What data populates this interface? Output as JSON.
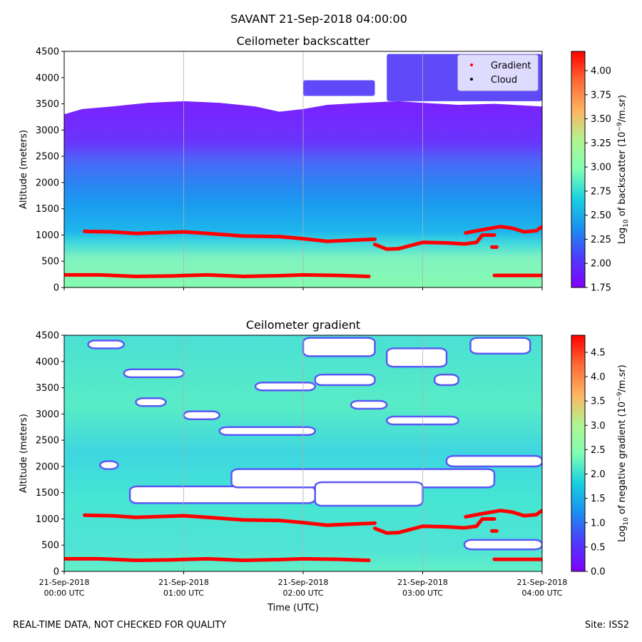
{
  "figure": {
    "suptitle": "SAVANT 21-Sep-2018 04:00:00",
    "footer_left": "REAL-TIME DATA, NOT CHECKED FOR QUALITY",
    "footer_right": "Site: ISS2"
  },
  "chart_data": [
    {
      "type": "heatmap",
      "title": "Ceilometer backscatter",
      "xlabel": "",
      "ylabel": "Altitude (meters)",
      "xlim_hours": [
        0,
        4
      ],
      "x_ticks": [
        {
          "t": 0,
          "line1": "21-Sep-2018",
          "line2": "00:00 UTC"
        },
        {
          "t": 1,
          "line1": "21-Sep-2018",
          "line2": "01:00 UTC"
        },
        {
          "t": 2,
          "line1": "21-Sep-2018",
          "line2": "02:00 UTC"
        },
        {
          "t": 3,
          "line1": "21-Sep-2018",
          "line2": "03:00 UTC"
        },
        {
          "t": 4,
          "line1": "21-Sep-2018",
          "line2": "04:00 UTC"
        }
      ],
      "show_x_tick_labels": false,
      "ylim": [
        0,
        4500
      ],
      "y_ticks": [
        0,
        500,
        1000,
        1500,
        2000,
        2500,
        3000,
        3500,
        4000,
        4500
      ],
      "grid_x": true,
      "colorbar": {
        "label_prefix": "Log",
        "label_sub": "10",
        "label_text": " of backscatter (10",
        "label_sup": "−9",
        "label_suffix": "/m.sr)",
        "range": [
          1.75,
          4.2
        ],
        "ticks": [
          "1.75",
          "2.00",
          "2.25",
          "2.50",
          "2.75",
          "3.00",
          "3.25",
          "3.50",
          "3.75",
          "4.00"
        ]
      },
      "legend": {
        "placement": "top-right",
        "entries": [
          {
            "label": "Gradient",
            "color": "#ff0000"
          },
          {
            "label": "Cloud",
            "color": "#000000"
          }
        ]
      },
      "top_of_signal_m": [
        [
          0,
          3300
        ],
        [
          0.15,
          3400
        ],
        [
          0.4,
          3450
        ],
        [
          0.7,
          3520
        ],
        [
          1.0,
          3550
        ],
        [
          1.3,
          3520
        ],
        [
          1.6,
          3450
        ],
        [
          1.8,
          3350
        ],
        [
          2.0,
          3400
        ],
        [
          2.2,
          3480
        ],
        [
          2.5,
          3520
        ],
        [
          2.8,
          3550
        ],
        [
          3.0,
          3520
        ],
        [
          3.3,
          3480
        ],
        [
          3.6,
          3500
        ],
        [
          4.0,
          3450
        ]
      ],
      "upper_clouds": [
        {
          "t_start": 2.0,
          "t_end": 2.6,
          "z_bottom": 3650,
          "z_top": 3950
        },
        {
          "t_start": 2.7,
          "t_end": 4.0,
          "z_bottom": 3550,
          "z_top": 4450
        }
      ],
      "gradient_upper": [
        {
          "segment": [
            [
              0.17,
              1070
            ],
            [
              0.4,
              1060
            ],
            [
              0.6,
              1030
            ],
            [
              0.8,
              1045
            ],
            [
              1.0,
              1060
            ],
            [
              1.2,
              1030
            ],
            [
              1.5,
              980
            ],
            [
              1.8,
              970
            ],
            [
              2.0,
              930
            ],
            [
              2.2,
              880
            ],
            [
              2.4,
              900
            ],
            [
              2.6,
              920
            ]
          ]
        },
        {
          "segment": [
            [
              2.6,
              820
            ],
            [
              2.7,
              730
            ],
            [
              2.8,
              740
            ],
            [
              3.0,
              860
            ],
            [
              3.2,
              850
            ],
            [
              3.35,
              830
            ],
            [
              3.45,
              860
            ],
            [
              3.5,
              1000
            ],
            [
              3.6,
              1000
            ]
          ]
        },
        {
          "segment": [
            [
              3.36,
              1040
            ],
            [
              3.5,
              1100
            ],
            [
              3.65,
              1160
            ],
            [
              3.75,
              1130
            ],
            [
              3.85,
              1060
            ],
            [
              3.95,
              1080
            ],
            [
              4.0,
              1160
            ]
          ]
        },
        {
          "segment": [
            [
              3.58,
              770
            ],
            [
              3.62,
              770
            ]
          ]
        }
      ],
      "gradient_lower": [
        {
          "segment": [
            [
              0,
              240
            ],
            [
              0.3,
              240
            ],
            [
              0.6,
              210
            ],
            [
              0.9,
              220
            ],
            [
              1.2,
              240
            ],
            [
              1.5,
              210
            ],
            [
              1.8,
              225
            ],
            [
              2.0,
              240
            ],
            [
              2.3,
              230
            ],
            [
              2.55,
              210
            ]
          ]
        },
        {
          "segment": [
            [
              3.6,
              230
            ],
            [
              4.0,
              230
            ]
          ]
        }
      ]
    },
    {
      "type": "heatmap",
      "title": "Ceilometer gradient",
      "xlabel": "Time (UTC)",
      "ylabel": "Altitude (meters)",
      "xlim_hours": [
        0,
        4
      ],
      "x_ticks": [
        {
          "t": 0,
          "line1": "21-Sep-2018",
          "line2": "00:00 UTC"
        },
        {
          "t": 1,
          "line1": "21-Sep-2018",
          "line2": "01:00 UTC"
        },
        {
          "t": 2,
          "line1": "21-Sep-2018",
          "line2": "02:00 UTC"
        },
        {
          "t": 3,
          "line1": "21-Sep-2018",
          "line2": "03:00 UTC"
        },
        {
          "t": 4,
          "line1": "21-Sep-2018",
          "line2": "04:00 UTC"
        }
      ],
      "show_x_tick_labels": true,
      "ylim": [
        0,
        4500
      ],
      "y_ticks": [
        0,
        500,
        1000,
        1500,
        2000,
        2500,
        3000,
        3500,
        4000,
        4500
      ],
      "grid_x": true,
      "colorbar": {
        "label_prefix": "Log",
        "label_sub": "10",
        "label_text": " of negative gradient (10",
        "label_sup": "−9",
        "label_suffix": "/m.sr)",
        "range": [
          0.0,
          4.85
        ],
        "ticks": [
          "0.0",
          "0.5",
          "1.0",
          "1.5",
          "2.0",
          "2.5",
          "3.0",
          "3.5",
          "4.0",
          "4.5"
        ]
      },
      "no_data_regions": [
        {
          "t_start": 0.55,
          "t_end": 2.1,
          "z_bottom": 1300,
          "z_top": 1620
        },
        {
          "t_start": 1.4,
          "t_end": 3.6,
          "z_bottom": 1600,
          "z_top": 1950
        },
        {
          "t_start": 2.1,
          "t_end": 3.0,
          "z_bottom": 1250,
          "z_top": 1700
        },
        {
          "t_start": 3.2,
          "t_end": 4.0,
          "z_bottom": 2000,
          "z_top": 2200
        },
        {
          "t_start": 0.3,
          "t_end": 0.45,
          "z_bottom": 1950,
          "z_top": 2100
        },
        {
          "t_start": 1.3,
          "t_end": 2.1,
          "z_bottom": 2600,
          "z_top": 2750
        },
        {
          "t_start": 0.6,
          "t_end": 0.85,
          "z_bottom": 3150,
          "z_top": 3300
        },
        {
          "t_start": 1.0,
          "t_end": 1.3,
          "z_bottom": 2900,
          "z_top": 3050
        },
        {
          "t_start": 2.4,
          "t_end": 2.7,
          "z_bottom": 3100,
          "z_top": 3250
        },
        {
          "t_start": 2.7,
          "t_end": 3.3,
          "z_bottom": 2800,
          "z_top": 2950
        },
        {
          "t_start": 2.1,
          "t_end": 2.6,
          "z_bottom": 3550,
          "z_top": 3750
        },
        {
          "t_start": 1.6,
          "t_end": 2.1,
          "z_bottom": 3450,
          "z_top": 3600
        },
        {
          "t_start": 2.0,
          "t_end": 2.6,
          "z_bottom": 4100,
          "z_top": 4450
        },
        {
          "t_start": 2.7,
          "t_end": 3.2,
          "z_bottom": 3900,
          "z_top": 4250
        },
        {
          "t_start": 3.4,
          "t_end": 3.9,
          "z_bottom": 4150,
          "z_top": 4450
        },
        {
          "t_start": 0.5,
          "t_end": 1.0,
          "z_bottom": 3700,
          "z_top": 3850
        },
        {
          "t_start": 0.2,
          "t_end": 0.5,
          "z_bottom": 4250,
          "z_top": 4400
        },
        {
          "t_start": 3.1,
          "t_end": 3.3,
          "z_bottom": 3550,
          "z_top": 3750
        },
        {
          "t_start": 3.35,
          "t_end": 4.0,
          "z_bottom": 420,
          "z_top": 600
        }
      ],
      "gradient_upper": [
        {
          "segment": [
            [
              0.17,
              1070
            ],
            [
              0.4,
              1060
            ],
            [
              0.6,
              1030
            ],
            [
              0.8,
              1045
            ],
            [
              1.0,
              1060
            ],
            [
              1.2,
              1030
            ],
            [
              1.5,
              980
            ],
            [
              1.8,
              970
            ],
            [
              2.0,
              930
            ],
            [
              2.2,
              880
            ],
            [
              2.4,
              900
            ],
            [
              2.6,
              920
            ]
          ]
        },
        {
          "segment": [
            [
              2.6,
              820
            ],
            [
              2.7,
              730
            ],
            [
              2.8,
              740
            ],
            [
              3.0,
              860
            ],
            [
              3.2,
              850
            ],
            [
              3.35,
              830
            ],
            [
              3.45,
              860
            ],
            [
              3.5,
              1000
            ],
            [
              3.6,
              1000
            ]
          ]
        },
        {
          "segment": [
            [
              3.36,
              1040
            ],
            [
              3.5,
              1100
            ],
            [
              3.65,
              1160
            ],
            [
              3.75,
              1130
            ],
            [
              3.85,
              1060
            ],
            [
              3.95,
              1080
            ],
            [
              4.0,
              1160
            ]
          ]
        },
        {
          "segment": [
            [
              3.58,
              770
            ],
            [
              3.62,
              770
            ]
          ]
        }
      ],
      "gradient_lower": [
        {
          "segment": [
            [
              0,
              240
            ],
            [
              0.3,
              240
            ],
            [
              0.6,
              210
            ],
            [
              0.9,
              220
            ],
            [
              1.2,
              240
            ],
            [
              1.5,
              210
            ],
            [
              1.8,
              225
            ],
            [
              2.0,
              240
            ],
            [
              2.3,
              230
            ],
            [
              2.55,
              210
            ]
          ]
        },
        {
          "segment": [
            [
              3.6,
              230
            ],
            [
              4.0,
              230
            ]
          ]
        }
      ]
    }
  ]
}
